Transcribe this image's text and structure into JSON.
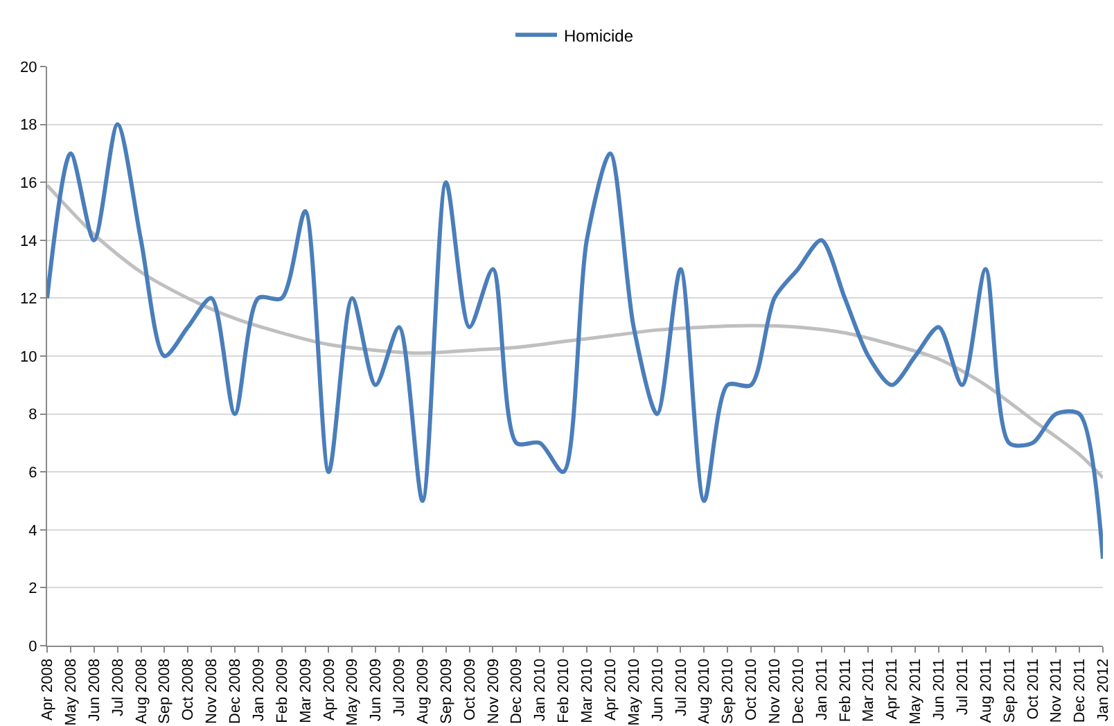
{
  "chart_data": {
    "type": "line",
    "categories": [
      "Apr 2008",
      "May 2008",
      "Jun 2008",
      "Jul 2008",
      "Aug 2008",
      "Sep 2008",
      "Oct 2008",
      "Nov 2008",
      "Dec 2008",
      "Jan 2009",
      "Feb 2009",
      "Mar 2009",
      "Apr 2009",
      "May 2009",
      "Jun 2009",
      "Jul 2009",
      "Aug 2009",
      "Sep 2009",
      "Oct 2009",
      "Nov 2009",
      "Dec 2009",
      "Jan 2010",
      "Feb 2010",
      "Mar 2010",
      "Apr 2010",
      "May 2010",
      "Jun 2010",
      "Jul 2010",
      "Aug 2010",
      "Sep 2010",
      "Oct 2010",
      "Nov 2010",
      "Dec 2010",
      "Jan 2011",
      "Feb 2011",
      "Mar 2011",
      "Apr 2011",
      "May 2011",
      "Jun 2011",
      "Jul 2011",
      "Aug 2011",
      "Sep 2011",
      "Oct 2011",
      "Nov 2011",
      "Dec 2011",
      "Jan 2012"
    ],
    "series": [
      {
        "name": "Homicide",
        "color": "#4a7ebb",
        "values": [
          12,
          17,
          14,
          18,
          14,
          10,
          11,
          12,
          8,
          12,
          12,
          15,
          6,
          12,
          9,
          11,
          5,
          16,
          11,
          13,
          7,
          7,
          6,
          14,
          17,
          11,
          8,
          13,
          5,
          9,
          9,
          12,
          13,
          14,
          12,
          10,
          9,
          10,
          11,
          9,
          13,
          7,
          7,
          8,
          8,
          3
        ]
      },
      {
        "type": "line",
        "color": "#bfbfbf",
        "x": [
          "Apr 2008",
          "Jun 2008",
          "Aug 2008",
          "Oct 2008",
          "Dec 2008",
          "Feb 2009",
          "Apr 2009",
          "Jun 2009",
          "Aug 2009",
          "Oct 2009",
          "Dec 2009",
          "Feb 2010",
          "Apr 2010",
          "Jun 2010",
          "Aug 2010",
          "Oct 2010",
          "Dec 2010",
          "Feb 2011",
          "Apr 2011",
          "Jun 2011",
          "Aug 2011",
          "Oct 2011",
          "Dec 2011",
          "Jan 2012"
        ],
        "values": [
          15.9,
          14.2,
          12.9,
          12.0,
          11.3,
          10.8,
          10.4,
          10.2,
          10.1,
          10.2,
          10.3,
          10.5,
          10.7,
          10.9,
          11.0,
          11.05,
          11.0,
          10.8,
          10.4,
          9.9,
          9.0,
          7.8,
          6.6,
          5.8
        ]
      }
    ],
    "ylim": [
      0,
      20
    ],
    "yticks": [
      0,
      2,
      4,
      6,
      8,
      10,
      12,
      14,
      16,
      18,
      20
    ],
    "grid": "y",
    "legend": "top",
    "marker": "none",
    "line_style": "solid"
  }
}
